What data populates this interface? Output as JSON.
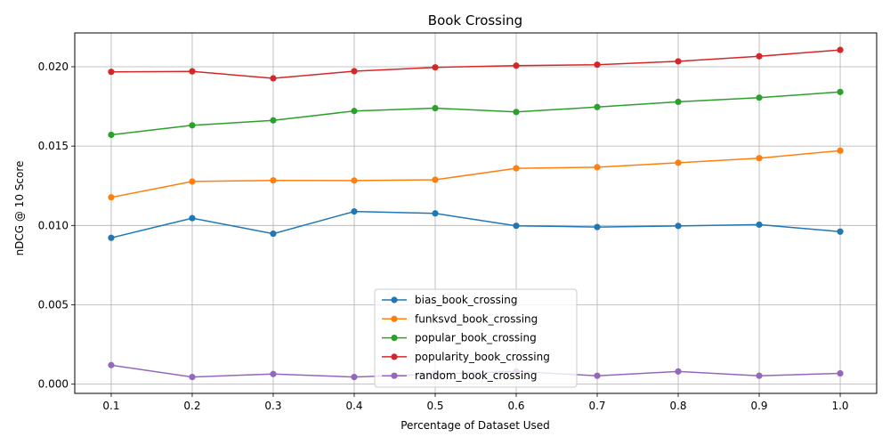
{
  "chart_data": {
    "type": "line",
    "title": "Book Crossing",
    "xlabel": "Percentage of Dataset Used",
    "ylabel": "nDCG @ 10 Score",
    "x": [
      0.1,
      0.2,
      0.3,
      0.4,
      0.5,
      0.6,
      0.7,
      0.8,
      0.9,
      1.0
    ],
    "x_tick_labels": [
      "0.1",
      "0.2",
      "0.3",
      "0.4",
      "0.5",
      "0.6",
      "0.7",
      "0.8",
      "0.9",
      "1.0"
    ],
    "y_ticks": [
      0.0,
      0.005,
      0.01,
      0.015,
      0.02
    ],
    "y_tick_labels": [
      "0.000",
      "0.005",
      "0.010",
      "0.015",
      "0.020"
    ],
    "xlim": [
      0.055,
      1.045
    ],
    "ylim": [
      -0.00058,
      0.02213
    ],
    "grid": true,
    "legend_position": "lower-center",
    "series": [
      {
        "name": "bias_book_crossing",
        "color": "#1f77b4",
        "values": [
          0.00922,
          0.01046,
          0.00948,
          0.01088,
          0.01076,
          0.00998,
          0.0099,
          0.00997,
          0.01005,
          0.00961
        ]
      },
      {
        "name": "funksvd_book_crossing",
        "color": "#ff7f0e",
        "values": [
          0.01177,
          0.01277,
          0.01284,
          0.01283,
          0.01288,
          0.0136,
          0.01367,
          0.01395,
          0.01424,
          0.01471
        ]
      },
      {
        "name": "popular_book_crossing",
        "color": "#2ca02c",
        "values": [
          0.01571,
          0.01631,
          0.01662,
          0.01721,
          0.01739,
          0.01715,
          0.01746,
          0.01779,
          0.01805,
          0.01841
        ]
      },
      {
        "name": "popularity_book_crossing",
        "color": "#d62728",
        "values": [
          0.01968,
          0.01971,
          0.01927,
          0.01972,
          0.01996,
          0.02007,
          0.02013,
          0.02034,
          0.02066,
          0.02106
        ]
      },
      {
        "name": "random_book_crossing",
        "color": "#9467bd",
        "values": [
          0.0012,
          0.00045,
          0.00064,
          0.00045,
          0.00064,
          0.0008,
          0.00053,
          0.0008,
          0.00053,
          0.00068
        ]
      }
    ]
  }
}
